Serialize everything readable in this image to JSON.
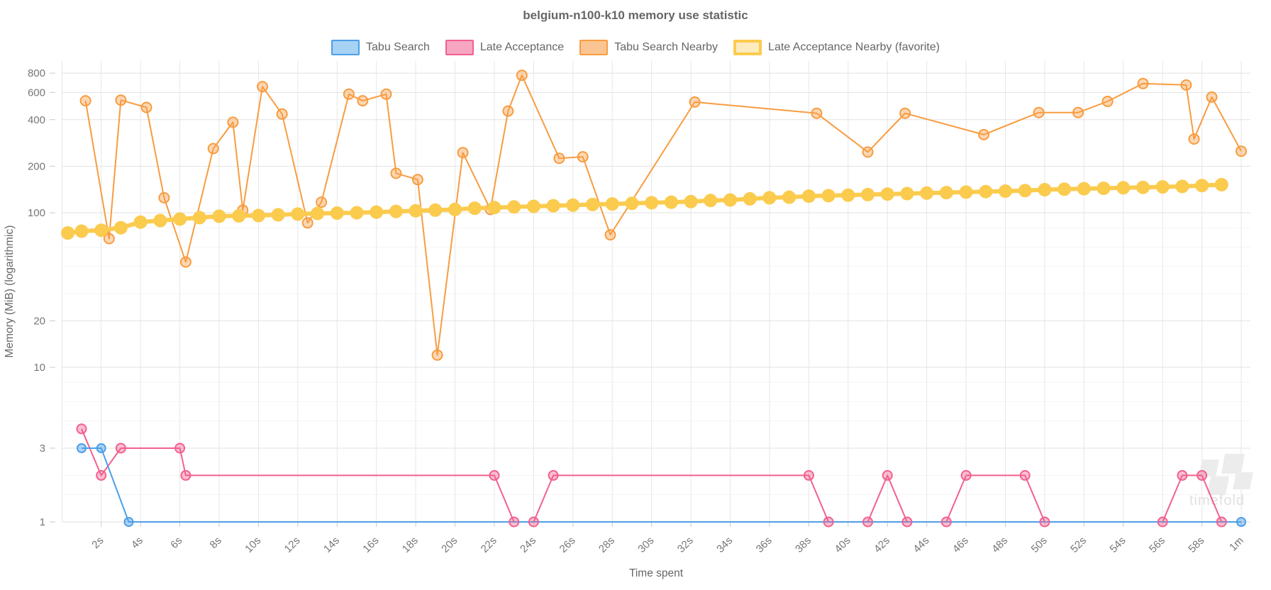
{
  "page": {
    "title": "belgium-n100-k10 memory use statistic",
    "watermark_text": "timefold"
  },
  "chart_data": {
    "type": "line",
    "title": "belgium-n100-k10 memory use statistic",
    "xlabel": "Time spent",
    "ylabel": "Memory (MiB) (logarithmic)",
    "y_scale": "log",
    "x_unit": "seconds",
    "x_range_seconds": [
      0,
      60
    ],
    "y_range": [
      1,
      800
    ],
    "grid": true,
    "legend_position": "top",
    "y_major_ticks": [
      800,
      600,
      400,
      200,
      100,
      20,
      10,
      3,
      1
    ],
    "y_minor_gridlines": [
      80,
      60,
      45,
      30,
      8,
      6,
      4.5,
      2,
      1.5
    ],
    "x_ticks": [
      {
        "t": 2,
        "label": "2s"
      },
      {
        "t": 4,
        "label": "4s"
      },
      {
        "t": 6,
        "label": "6s"
      },
      {
        "t": 8,
        "label": "8s"
      },
      {
        "t": 10,
        "label": "10s"
      },
      {
        "t": 12,
        "label": "12s"
      },
      {
        "t": 14,
        "label": "14s"
      },
      {
        "t": 16,
        "label": "16s"
      },
      {
        "t": 18,
        "label": "18s"
      },
      {
        "t": 20,
        "label": "20s"
      },
      {
        "t": 22,
        "label": "22s"
      },
      {
        "t": 24,
        "label": "24s"
      },
      {
        "t": 26,
        "label": "26s"
      },
      {
        "t": 28,
        "label": "28s"
      },
      {
        "t": 30,
        "label": "30s"
      },
      {
        "t": 32,
        "label": "32s"
      },
      {
        "t": 34,
        "label": "34s"
      },
      {
        "t": 36,
        "label": "36s"
      },
      {
        "t": 38,
        "label": "38s"
      },
      {
        "t": 40,
        "label": "40s"
      },
      {
        "t": 42,
        "label": "42s"
      },
      {
        "t": 44,
        "label": "44s"
      },
      {
        "t": 46,
        "label": "46s"
      },
      {
        "t": 48,
        "label": "48s"
      },
      {
        "t": 50,
        "label": "50s"
      },
      {
        "t": 52,
        "label": "52s"
      },
      {
        "t": 54,
        "label": "54s"
      },
      {
        "t": 56,
        "label": "56s"
      },
      {
        "t": 58,
        "label": "58s"
      },
      {
        "t": 60,
        "label": "1m"
      }
    ],
    "series": [
      {
        "name": "Tabu Search",
        "color": "#4D9FE8",
        "point_fill": "rgba(77,159,232,0.45)",
        "legend_fill": "#A6D2F3",
        "legend_border_width": 2,
        "line_width": 2,
        "point_radius": 6,
        "points": [
          [
            1,
            3
          ],
          [
            2,
            3
          ],
          [
            3.4,
            1
          ],
          [
            60,
            1
          ]
        ]
      },
      {
        "name": "Late Acceptance",
        "color": "#F2608E",
        "point_fill": "rgba(242,96,142,0.4)",
        "legend_fill": "#F7A6C1",
        "legend_border_width": 2,
        "line_width": 2,
        "point_radius": 6.5,
        "points": [
          [
            1,
            4
          ],
          [
            2,
            2
          ],
          [
            3,
            3
          ],
          [
            6,
            3
          ],
          [
            6.3,
            2
          ],
          [
            22,
            2
          ],
          [
            23,
            1
          ],
          [
            24,
            1
          ],
          [
            25,
            2
          ],
          [
            38,
            2
          ],
          [
            39,
            1
          ],
          [
            41,
            1
          ],
          [
            42,
            2
          ],
          [
            43,
            1
          ],
          [
            45,
            1
          ],
          [
            46,
            2
          ],
          [
            49,
            2
          ],
          [
            50,
            1
          ],
          [
            56,
            1
          ],
          [
            57,
            2
          ],
          [
            58,
            2
          ],
          [
            59,
            1
          ]
        ]
      },
      {
        "name": "Tabu Search Nearby",
        "color": "#F89C40",
        "point_fill": "rgba(248,156,64,0.4)",
        "legend_fill": "#FAC592",
        "legend_border_width": 2,
        "line_width": 2,
        "point_radius": 7,
        "points": [
          [
            1.2,
            530
          ],
          [
            2.4,
            68
          ],
          [
            3,
            535
          ],
          [
            4.3,
            480
          ],
          [
            5.2,
            125
          ],
          [
            6.3,
            48
          ],
          [
            7.7,
            260
          ],
          [
            8.7,
            385
          ],
          [
            9.2,
            104
          ],
          [
            10.2,
            655
          ],
          [
            11.2,
            435
          ],
          [
            12.5,
            86
          ],
          [
            13.2,
            117
          ],
          [
            14.6,
            585
          ],
          [
            15.3,
            530
          ],
          [
            16.5,
            585
          ],
          [
            17,
            180
          ],
          [
            18.1,
            164
          ],
          [
            19.1,
            12
          ],
          [
            20.4,
            245
          ],
          [
            21.8,
            105
          ],
          [
            22.7,
            455
          ],
          [
            23.4,
            775
          ],
          [
            25.3,
            225
          ],
          [
            26.5,
            230
          ],
          [
            27.9,
            72
          ],
          [
            32.2,
            520
          ],
          [
            38.4,
            440
          ],
          [
            41,
            247
          ],
          [
            42.9,
            440
          ],
          [
            46.9,
            320
          ],
          [
            49.7,
            445
          ],
          [
            51.7,
            445
          ],
          [
            53.2,
            525
          ],
          [
            55,
            685
          ],
          [
            57.2,
            670
          ],
          [
            57.6,
            300
          ],
          [
            58.5,
            560
          ],
          [
            60,
            250
          ]
        ]
      },
      {
        "name": "Late Acceptance Nearby (favorite)",
        "color": "#FBCB4E",
        "point_fill": "#FBCB4E",
        "legend_fill": "#FDEBC0",
        "legend_border_width": 4,
        "line_width": 6,
        "point_radius": 8.5,
        "points": [
          [
            0.3,
            74
          ],
          [
            1,
            76
          ],
          [
            2,
            77
          ],
          [
            3,
            80
          ],
          [
            4,
            87
          ],
          [
            5,
            89
          ],
          [
            6,
            91
          ],
          [
            7,
            93
          ],
          [
            8,
            95
          ],
          [
            9,
            95.5
          ],
          [
            10,
            96
          ],
          [
            11,
            97
          ],
          [
            12,
            98
          ],
          [
            13,
            99
          ],
          [
            14,
            99.5
          ],
          [
            15,
            100
          ],
          [
            16,
            101
          ],
          [
            17,
            102
          ],
          [
            18,
            103
          ],
          [
            19,
            104
          ],
          [
            20,
            105
          ],
          [
            21,
            107
          ],
          [
            22,
            108
          ],
          [
            23,
            109
          ],
          [
            24,
            110
          ],
          [
            25,
            111
          ],
          [
            26,
            112
          ],
          [
            27,
            113
          ],
          [
            28,
            114
          ],
          [
            29,
            115
          ],
          [
            30,
            116
          ],
          [
            31,
            117
          ],
          [
            32,
            118
          ],
          [
            33,
            120
          ],
          [
            34,
            121
          ],
          [
            35,
            123
          ],
          [
            36,
            125
          ],
          [
            37,
            126
          ],
          [
            38,
            128
          ],
          [
            39,
            129
          ],
          [
            40,
            130
          ],
          [
            41,
            131
          ],
          [
            42,
            132
          ],
          [
            43,
            133
          ],
          [
            44,
            134
          ],
          [
            45,
            135
          ],
          [
            46,
            136
          ],
          [
            47,
            137
          ],
          [
            48,
            138
          ],
          [
            49,
            139
          ],
          [
            50,
            141
          ],
          [
            51,
            142
          ],
          [
            52,
            143
          ],
          [
            53,
            144
          ],
          [
            54,
            145
          ],
          [
            55,
            146
          ],
          [
            56,
            147
          ],
          [
            57,
            148
          ],
          [
            58,
            150
          ],
          [
            59,
            152
          ]
        ]
      }
    ]
  }
}
